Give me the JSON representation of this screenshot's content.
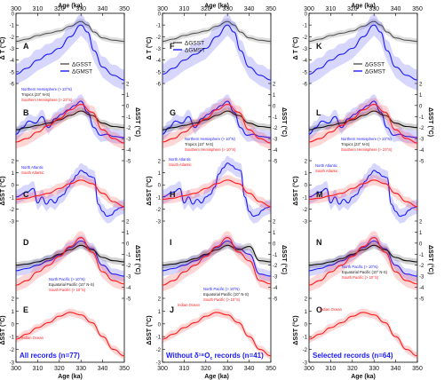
{
  "figure": {
    "x_axis_label": "Age (ka)",
    "x_ticks": [
      "300",
      "310",
      "320",
      "330",
      "340",
      "350"
    ],
    "columns": [
      {
        "footer": "All records (n=77)"
      },
      {
        "footer": "Without δ¹⁸O",
        "footer_sub": "c",
        "footer_end": " records (n=41)"
      },
      {
        "footer": "Selected records (n=64)"
      }
    ],
    "panel_letters": [
      "A",
      "B",
      "C",
      "D",
      "E",
      "F",
      "G",
      "H",
      "I",
      "J",
      "K",
      "L",
      "M",
      "N",
      "O"
    ],
    "row_labels": {
      "top": "Δ T (°C)",
      "sst": "ΔSST (°C)"
    },
    "y_ticks": {
      "top": [
        "0",
        "-1",
        "-2",
        "-3",
        "-4",
        "-5",
        "-6"
      ],
      "right_a": [
        "2",
        "1",
        "0",
        "-1",
        "-2",
        "-3",
        "-4",
        "-5"
      ],
      "right_b": [
        "2",
        "1",
        "0",
        "-1",
        "-2",
        "-3",
        "-4",
        "-5"
      ],
      "left_c": [
        "2",
        "1",
        "0",
        "-1",
        "-2",
        "-3"
      ],
      "left_e": [
        "2",
        "1",
        "0",
        "-1",
        "-2",
        "-3"
      ]
    },
    "legend": {
      "gsst": "ΔGSST",
      "gmst": "ΔGMST"
    },
    "region_labels": {
      "nh": "Northern Hemisphere (> 23°N)",
      "tropics": "Tropics (23° N-S)",
      "sh": "Southern Hemisphere (> 23°S)",
      "nh_g": "Northern Hemisphere (> 10°N)",
      "tropics_g": "Tropics (10° N-S)",
      "sh_g": "Southern Hemisphere (> 10°S)",
      "natl": "North Atlantic",
      "satl": "South Atlantic",
      "npac": "North Pacific (> 10°N)",
      "epac": "Equatorial Pacific (10° N-S)",
      "spac": "South Pacific (> 10°S)",
      "indian": "Indian Ocean"
    },
    "colors": {
      "gray": "#555555",
      "blue": "#1a1aff",
      "red": "#ff1a1a",
      "black": "#111111",
      "blue_text": "#1a1aff"
    }
  },
  "chart_data": [
    {
      "type": "line",
      "panel": "A/F/K",
      "title": "",
      "xlabel": "Age (ka)",
      "ylabel": "Δ T (°C)",
      "xlim": [
        300,
        350
      ],
      "ylim": [
        -6,
        0
      ],
      "series": [
        {
          "name": "ΔGSST",
          "x": [
            300,
            305,
            310,
            315,
            320,
            325,
            330,
            333,
            336,
            340,
            345,
            350
          ],
          "values": [
            -2.4,
            -2.2,
            -1.9,
            -1.7,
            -1.5,
            -1.1,
            -0.7,
            -1.0,
            -1.6,
            -2.1,
            -2.3,
            -2.4
          ]
        },
        {
          "name": "ΔGMST",
          "x": [
            300,
            305,
            310,
            315,
            320,
            325,
            330,
            333,
            336,
            340,
            345,
            350
          ],
          "values": [
            -5.2,
            -4.7,
            -4.0,
            -3.5,
            -3.0,
            -2.0,
            -1.0,
            -1.6,
            -3.2,
            -4.6,
            -5.3,
            -5.7
          ]
        }
      ]
    },
    {
      "type": "line",
      "panel": "B/G/L",
      "xlim": [
        300,
        350
      ],
      "ylim": [
        -5,
        2
      ],
      "series": [
        {
          "name": "Northern Hemisphere (> 23°N)",
          "x": [
            300,
            303,
            306,
            309,
            312,
            315,
            318,
            321,
            324,
            327,
            330,
            333,
            336,
            339,
            342,
            345,
            350
          ],
          "values": [
            -2.6,
            -2.0,
            -1.4,
            -1.6,
            -1.0,
            -2.0,
            -1.2,
            -0.8,
            -0.4,
            0.0,
            0.4,
            -0.6,
            -2.0,
            -2.7,
            -2.6,
            -2.8,
            -2.9
          ]
        },
        {
          "name": "Tropics (23° N-S)",
          "x": [
            300,
            305,
            310,
            315,
            320,
            325,
            330,
            335,
            340,
            345,
            350
          ],
          "values": [
            -2.2,
            -2.0,
            -1.8,
            -1.6,
            -1.3,
            -0.9,
            -0.5,
            -0.9,
            -1.6,
            -1.9,
            -2.0
          ]
        },
        {
          "name": "Southern Hemisphere (> 23°S)",
          "x": [
            300,
            305,
            310,
            315,
            320,
            325,
            330,
            335,
            340,
            345,
            350
          ],
          "values": [
            -3.3,
            -3.0,
            -2.4,
            -1.8,
            -1.2,
            -0.4,
            0.1,
            -0.6,
            -2.2,
            -3.0,
            -3.4
          ]
        }
      ]
    },
    {
      "type": "line",
      "panel": "C/H/M",
      "xlim": [
        300,
        350
      ],
      "ylim": [
        -3,
        2
      ],
      "series": [
        {
          "name": "North Atlantic",
          "x": [
            300,
            305,
            308,
            310,
            312,
            314,
            316,
            318,
            320,
            322,
            324,
            326,
            328,
            330,
            332,
            334,
            336,
            338,
            340,
            342,
            344,
            346,
            348,
            350
          ],
          "values": [
            -1.0,
            -0.6,
            -0.3,
            -1.5,
            -1.0,
            -1.6,
            -1.2,
            -1.5,
            -1.0,
            -0.8,
            -0.2,
            0.3,
            0.8,
            1.2,
            1.0,
            0.7,
            0.6,
            -1.6,
            -2.2,
            -2.6,
            -2.5,
            -2.1,
            -1.9,
            -1.8
          ]
        },
        {
          "name": "South Atlantic",
          "x": [
            300,
            305,
            310,
            315,
            320,
            325,
            330,
            335,
            340,
            345,
            350
          ],
          "values": [
            -1.2,
            -1.1,
            -0.9,
            -0.7,
            -0.3,
            0.1,
            0.4,
            0.1,
            -0.7,
            -1.4,
            -1.8
          ]
        }
      ]
    },
    {
      "type": "line",
      "panel": "D/I/N",
      "xlim": [
        300,
        350
      ],
      "ylim": [
        -5,
        2
      ],
      "series": [
        {
          "name": "North Pacific (> 10°N)",
          "x": [
            300,
            305,
            310,
            315,
            320,
            325,
            330,
            335,
            340,
            345,
            350
          ],
          "values": [
            -2.5,
            -2.3,
            -2.0,
            -1.6,
            -1.1,
            -0.4,
            0.2,
            -0.5,
            -2.0,
            -2.8,
            -3.0
          ]
        },
        {
          "name": "Equatorial Pacific (10° N-S)",
          "x": [
            300,
            305,
            310,
            315,
            320,
            325,
            330,
            335,
            340,
            345,
            350
          ],
          "values": [
            -2.0,
            -1.9,
            -1.7,
            -1.4,
            -1.0,
            -0.6,
            -0.2,
            -0.6,
            -1.3,
            -1.6,
            -1.7
          ]
        },
        {
          "name": "South Pacific (> 10°S)",
          "x": [
            300,
            305,
            310,
            315,
            320,
            325,
            330,
            335,
            340,
            345,
            350
          ],
          "values": [
            -3.8,
            -3.4,
            -2.6,
            -2.0,
            -1.2,
            -0.3,
            0.5,
            -0.8,
            -2.6,
            -3.4,
            -3.7
          ]
        }
      ]
    },
    {
      "type": "line",
      "panel": "E/J/O",
      "xlim": [
        300,
        350
      ],
      "ylim": [
        -3,
        2
      ],
      "series": [
        {
          "name": "Indian Ocean",
          "x": [
            300,
            305,
            310,
            315,
            320,
            325,
            330,
            335,
            340,
            345,
            350
          ],
          "values": [
            -1.2,
            -0.8,
            -0.3,
            0.1,
            0.6,
            0.9,
            0.7,
            0.1,
            -1.0,
            -2.0,
            -2.5
          ]
        }
      ]
    }
  ]
}
